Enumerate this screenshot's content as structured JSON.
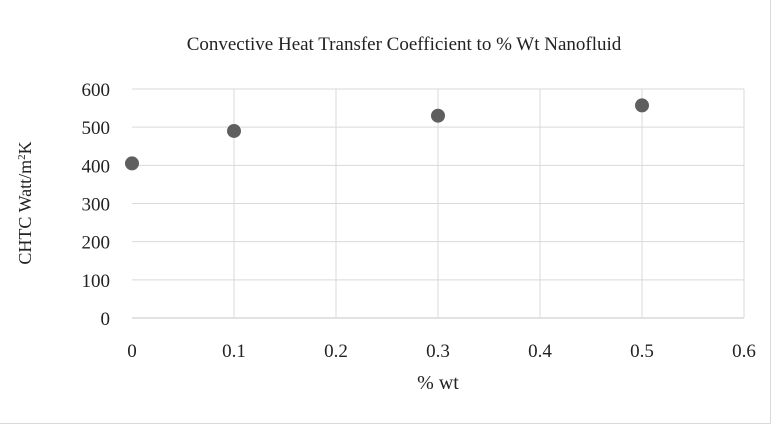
{
  "chart_data": {
    "type": "scatter",
    "title": "Convective Heat Transfer Coefficient to % Wt  Nanofluid",
    "xlabel": "% wt",
    "ylabel_main": "CHTC Watt/m",
    "ylabel_sup": "2",
    "ylabel_tail": "K",
    "xlim": [
      0,
      0.6
    ],
    "ylim": [
      0,
      600
    ],
    "x_ticks": [
      "0",
      "0.1",
      "0.2",
      "0.3",
      "0.4",
      "0.5",
      "0.6"
    ],
    "y_ticks": [
      "0",
      "100",
      "200",
      "300",
      "400",
      "500",
      "600"
    ],
    "x": [
      0,
      0.1,
      0.3,
      0.5
    ],
    "y": [
      405,
      490,
      530,
      557
    ],
    "grid": true,
    "marker_color": "#5f5f5f",
    "grid_color": "#d9d9d9"
  }
}
